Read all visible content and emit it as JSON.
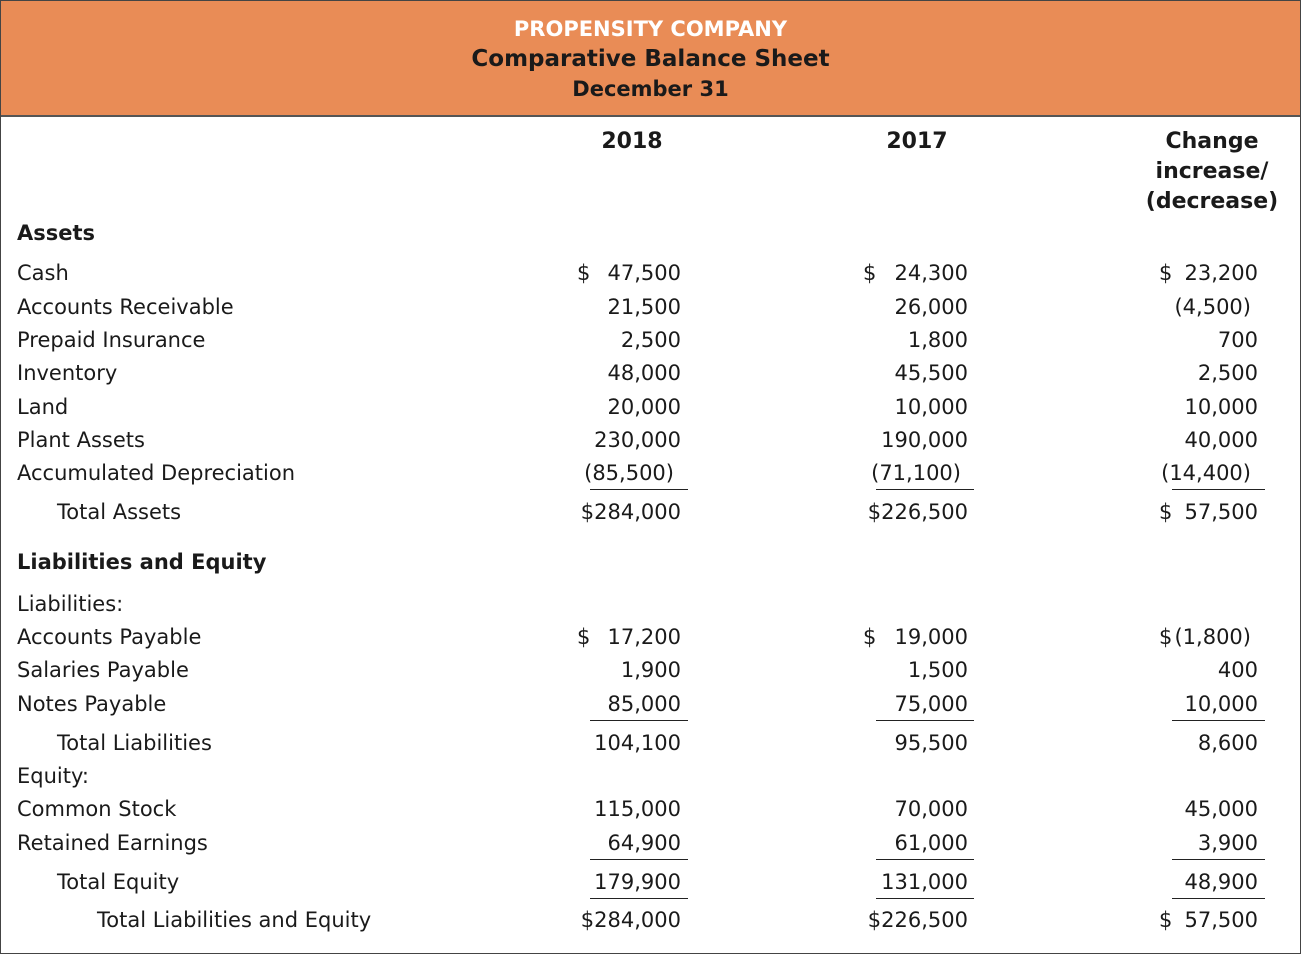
{
  "header": {
    "company": "PROPENSITY COMPANY",
    "title": "Comparative Balance Sheet",
    "date": "December 31"
  },
  "columns": [
    [
      "2018"
    ],
    [
      "2017"
    ],
    [
      "Change",
      "increase/",
      "(decrease)"
    ]
  ],
  "rows": [
    {
      "label": "Assets",
      "kind": "section"
    },
    {
      "label": "Cash",
      "cells": [
        {
          "sign": "$",
          "amount": "47,500"
        },
        {
          "sign": "$",
          "amount": "24,300"
        },
        {
          "sign": "$",
          "amount": "23,200"
        }
      ]
    },
    {
      "label": "Accounts Receivable",
      "cells": [
        "21,500",
        "26,000",
        "(4,500)"
      ]
    },
    {
      "label": "Prepaid Insurance",
      "cells": [
        "2,500",
        "1,800",
        "700"
      ]
    },
    {
      "label": "Inventory",
      "cells": [
        "48,000",
        "45,500",
        "2,500"
      ]
    },
    {
      "label": "Land",
      "cells": [
        "20,000",
        "10,000",
        "10,000"
      ]
    },
    {
      "label": "Plant Assets",
      "cells": [
        "230,000",
        "190,000",
        "40,000"
      ]
    },
    {
      "label": "Accumulated Depreciation",
      "cells": [
        "(85,500)",
        "(71,100)",
        "(14,400)"
      ],
      "underline": true
    },
    {
      "label": "Total Assets",
      "indent": 1,
      "cells": [
        "$284,000",
        "$226,500",
        {
          "sign": "$",
          "amount": "57,500"
        }
      ]
    },
    {
      "label": "Liabilities and Equity",
      "kind": "section"
    },
    {
      "label": "Liabilities:"
    },
    {
      "label": "Accounts Payable",
      "cells": [
        {
          "sign": "$",
          "amount": "17,200"
        },
        {
          "sign": "$",
          "amount": "19,000"
        },
        {
          "sign": "$",
          "amount": "(1,800)"
        }
      ]
    },
    {
      "label": "Salaries Payable",
      "cells": [
        "1,900",
        "1,500",
        "400"
      ]
    },
    {
      "label": "Notes Payable",
      "cells": [
        "85,000",
        "75,000",
        "10,000"
      ],
      "underline": true
    },
    {
      "label": "Total Liabilities",
      "indent": 1,
      "cells": [
        "104,100",
        "95,500",
        "8,600"
      ]
    },
    {
      "label": "Equity:"
    },
    {
      "label": "Common Stock",
      "cells": [
        "115,000",
        "70,000",
        "45,000"
      ]
    },
    {
      "label": "Retained Earnings",
      "cells": [
        "64,900",
        "61,000",
        "3,900"
      ],
      "underline": true
    },
    {
      "label": "Total Equity",
      "indent": 1,
      "cells": [
        "179,900",
        "131,000",
        "48,900"
      ],
      "underline": true
    },
    {
      "label": "Total Liabilities and Equity",
      "indent": 2,
      "cells": [
        "$284,000",
        "$226,500",
        {
          "sign": "$",
          "amount": "57,500"
        }
      ]
    }
  ]
}
